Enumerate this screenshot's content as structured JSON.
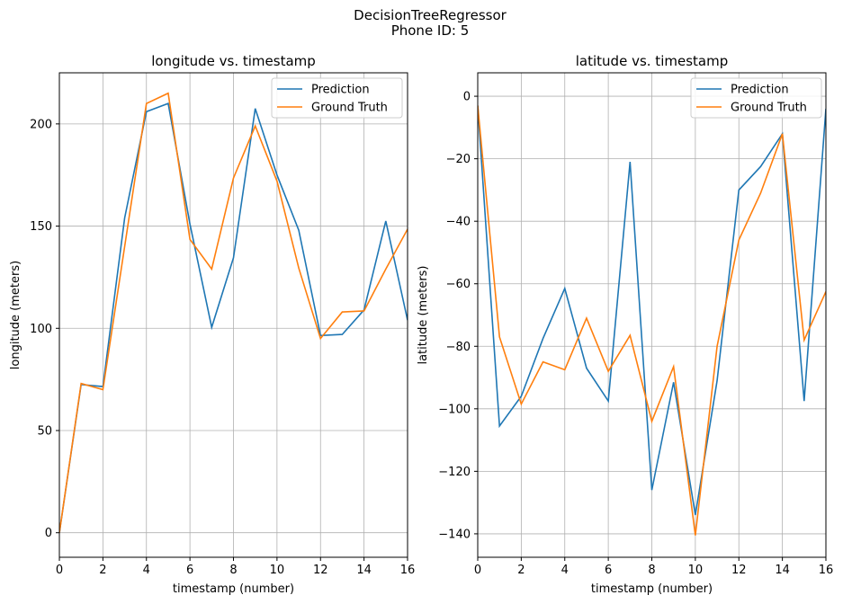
{
  "figure": {
    "suptitle_line1": "DecisionTreeRegressor",
    "suptitle_line2": "Phone ID: 5"
  },
  "colors": {
    "prediction": "#1f77b4",
    "ground_truth": "#ff7f0e",
    "grid": "#b0b0b0",
    "axis": "#000000"
  },
  "chart_data": [
    {
      "type": "line",
      "title": "longitude vs. timestamp",
      "xlabel": "timestamp (number)",
      "ylabel": "longitude (meters)",
      "xlim": [
        0,
        16
      ],
      "ylim": [
        -12,
        225
      ],
      "xticks": [
        0,
        2,
        4,
        6,
        8,
        10,
        12,
        14,
        16
      ],
      "yticks": [
        0,
        50,
        100,
        150,
        200
      ],
      "grid": true,
      "legend": "upper right",
      "x": [
        0,
        1,
        2,
        3,
        4,
        5,
        6,
        7,
        8,
        9,
        10,
        11,
        12,
        13,
        14,
        15,
        16
      ],
      "series": [
        {
          "name": "Prediction",
          "color_key": "prediction",
          "values": [
            0,
            72.5,
            71.5,
            154,
            206,
            210,
            151,
            100.5,
            134.5,
            207.5,
            175,
            148,
            96.5,
            97,
            109,
            152.5,
            104
          ]
        },
        {
          "name": "Ground Truth",
          "color_key": "ground_truth",
          "values": [
            0,
            73,
            70,
            140,
            210,
            215,
            143.5,
            129,
            173.5,
            199,
            172,
            129.5,
            95,
            108,
            108.5,
            129,
            148.5
          ]
        }
      ]
    },
    {
      "type": "line",
      "title": "latitude vs. timestamp",
      "xlabel": "timestamp (number)",
      "ylabel": "latitude (meters)",
      "xlim": [
        0,
        16
      ],
      "ylim": [
        -147.5,
        7.5
      ],
      "xticks": [
        0,
        2,
        4,
        6,
        8,
        10,
        12,
        14,
        16
      ],
      "yticks": [
        0,
        -20,
        -40,
        -60,
        -80,
        -100,
        -120,
        -140
      ],
      "grid": true,
      "legend": "upper right",
      "x": [
        0,
        1,
        2,
        3,
        4,
        5,
        6,
        7,
        8,
        9,
        10,
        11,
        12,
        13,
        14,
        15,
        16
      ],
      "series": [
        {
          "name": "Prediction",
          "color_key": "prediction",
          "values": [
            -3,
            -105.5,
            -96,
            -77.5,
            -61.5,
            -87,
            -97.5,
            -21,
            -126,
            -91.5,
            -134,
            -91,
            -30,
            -22.5,
            -12,
            -97.5,
            -4
          ]
        },
        {
          "name": "Ground Truth",
          "color_key": "ground_truth",
          "values": [
            -3,
            -77,
            -98.5,
            -85,
            -87.5,
            -71,
            -88,
            -76.5,
            -104,
            -86.5,
            -140.5,
            -80,
            -46,
            -31,
            -12,
            -78,
            -62.5
          ]
        }
      ]
    }
  ]
}
